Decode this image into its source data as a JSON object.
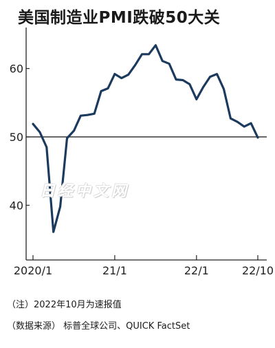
{
  "title": "美国制造业PMI跌破50大关",
  "watermark": "日经中文网",
  "notes": {
    "note1": "（注）2022年10月为速报值",
    "note2": "（数据来源） 标普全球公司、QUICK FactSet"
  },
  "chart_data": {
    "type": "line",
    "title": "美国制造业PMI跌破50大关",
    "xlabel": "",
    "ylabel": "",
    "x_ticks": [
      "2020/1",
      "21/1",
      "22/1",
      "22/10"
    ],
    "y_ticks": [
      40,
      50,
      60
    ],
    "ylim": [
      32,
      66
    ],
    "xlim": [
      "2020/1",
      "22/10"
    ],
    "reference_line": 50,
    "grid": false,
    "line_color": "#1c3a5e",
    "series": [
      {
        "name": "",
        "x": [
          "2020/1",
          "2020/2",
          "2020/3",
          "2020/4",
          "2020/5",
          "2020/6",
          "2020/7",
          "2020/8",
          "2020/9",
          "2020/10",
          "2020/11",
          "2020/12",
          "2021/1",
          "2021/2",
          "2021/3",
          "2021/4",
          "2021/5",
          "2021/6",
          "2021/7",
          "2021/8",
          "2021/9",
          "2021/10",
          "2021/11",
          "2021/12",
          "2022/1",
          "2022/2",
          "2022/3",
          "2022/4",
          "2022/5",
          "2022/6",
          "2022/7",
          "2022/8",
          "2022/9",
          "2022/10"
        ],
        "values": [
          51.9,
          50.7,
          48.5,
          36.1,
          39.8,
          49.8,
          50.9,
          53.1,
          53.2,
          53.4,
          56.7,
          57.1,
          59.2,
          58.6,
          59.1,
          60.5,
          62.1,
          62.1,
          63.4,
          61.1,
          60.7,
          58.4,
          58.3,
          57.7,
          55.5,
          57.3,
          58.8,
          59.2,
          57.0,
          52.7,
          52.2,
          51.5,
          52.0,
          49.9
        ]
      }
    ]
  }
}
